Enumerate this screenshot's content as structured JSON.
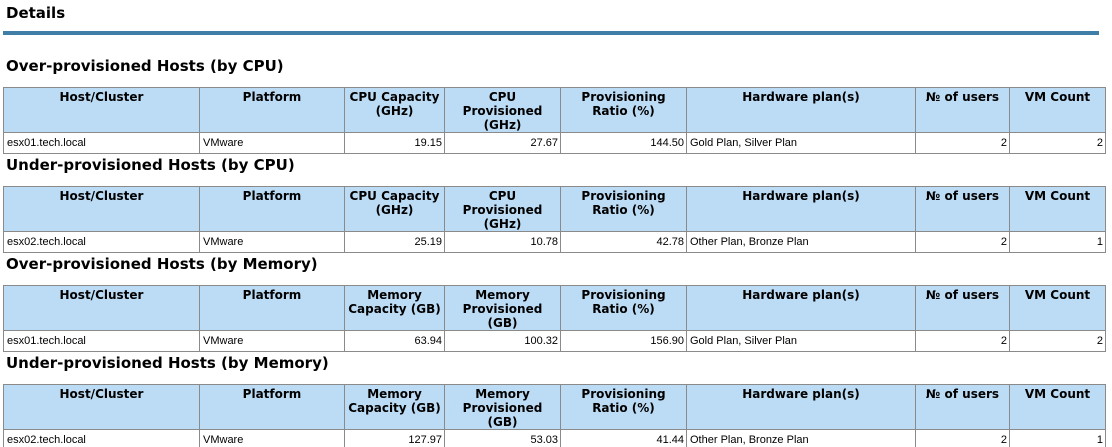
{
  "page": {
    "title": "Details"
  },
  "columns": {
    "cpu": [
      "Host/Cluster",
      "Platform",
      "CPU Capacity (GHz)",
      "CPU Provisioned (GHz)",
      "Provisioning Ratio (%)",
      "Hardware plan(s)",
      "№ of users",
      "VM Count"
    ],
    "memory": [
      "Host/Cluster",
      "Platform",
      "Memory Capacity (GB)",
      "Memory Provisioned (GB)",
      "Provisioning Ratio (%)",
      "Hardware plan(s)",
      "№ of users",
      "VM Count"
    ]
  },
  "sections": [
    {
      "title": "Over-provisioned Hosts (by CPU)",
      "kind": "cpu",
      "rows": [
        {
          "host": "esx01.tech.local",
          "platform": "VMware",
          "capacity": "19.15",
          "provisioned": "27.67",
          "ratio": "144.50",
          "plans": "Gold Plan, Silver Plan",
          "users": "2",
          "vm_count": "2"
        }
      ]
    },
    {
      "title": "Under-provisioned Hosts (by CPU)",
      "kind": "cpu",
      "rows": [
        {
          "host": "esx02.tech.local",
          "platform": "VMware",
          "capacity": "25.19",
          "provisioned": "10.78",
          "ratio": "42.78",
          "plans": "Other Plan, Bronze Plan",
          "users": "2",
          "vm_count": "1"
        }
      ]
    },
    {
      "title": "Over-provisioned Hosts (by Memory)",
      "kind": "memory",
      "rows": [
        {
          "host": "esx01.tech.local",
          "platform": "VMware",
          "capacity": "63.94",
          "provisioned": "100.32",
          "ratio": "156.90",
          "plans": "Gold Plan, Silver Plan",
          "users": "2",
          "vm_count": "2"
        }
      ]
    },
    {
      "title": "Under-provisioned Hosts (by Memory)",
      "kind": "memory",
      "rows": [
        {
          "host": "esx02.tech.local",
          "platform": "VMware",
          "capacity": "127.97",
          "provisioned": "53.03",
          "ratio": "41.44",
          "plans": "Other Plan, Bronze Plan",
          "users": "2",
          "vm_count": "1"
        }
      ]
    }
  ]
}
